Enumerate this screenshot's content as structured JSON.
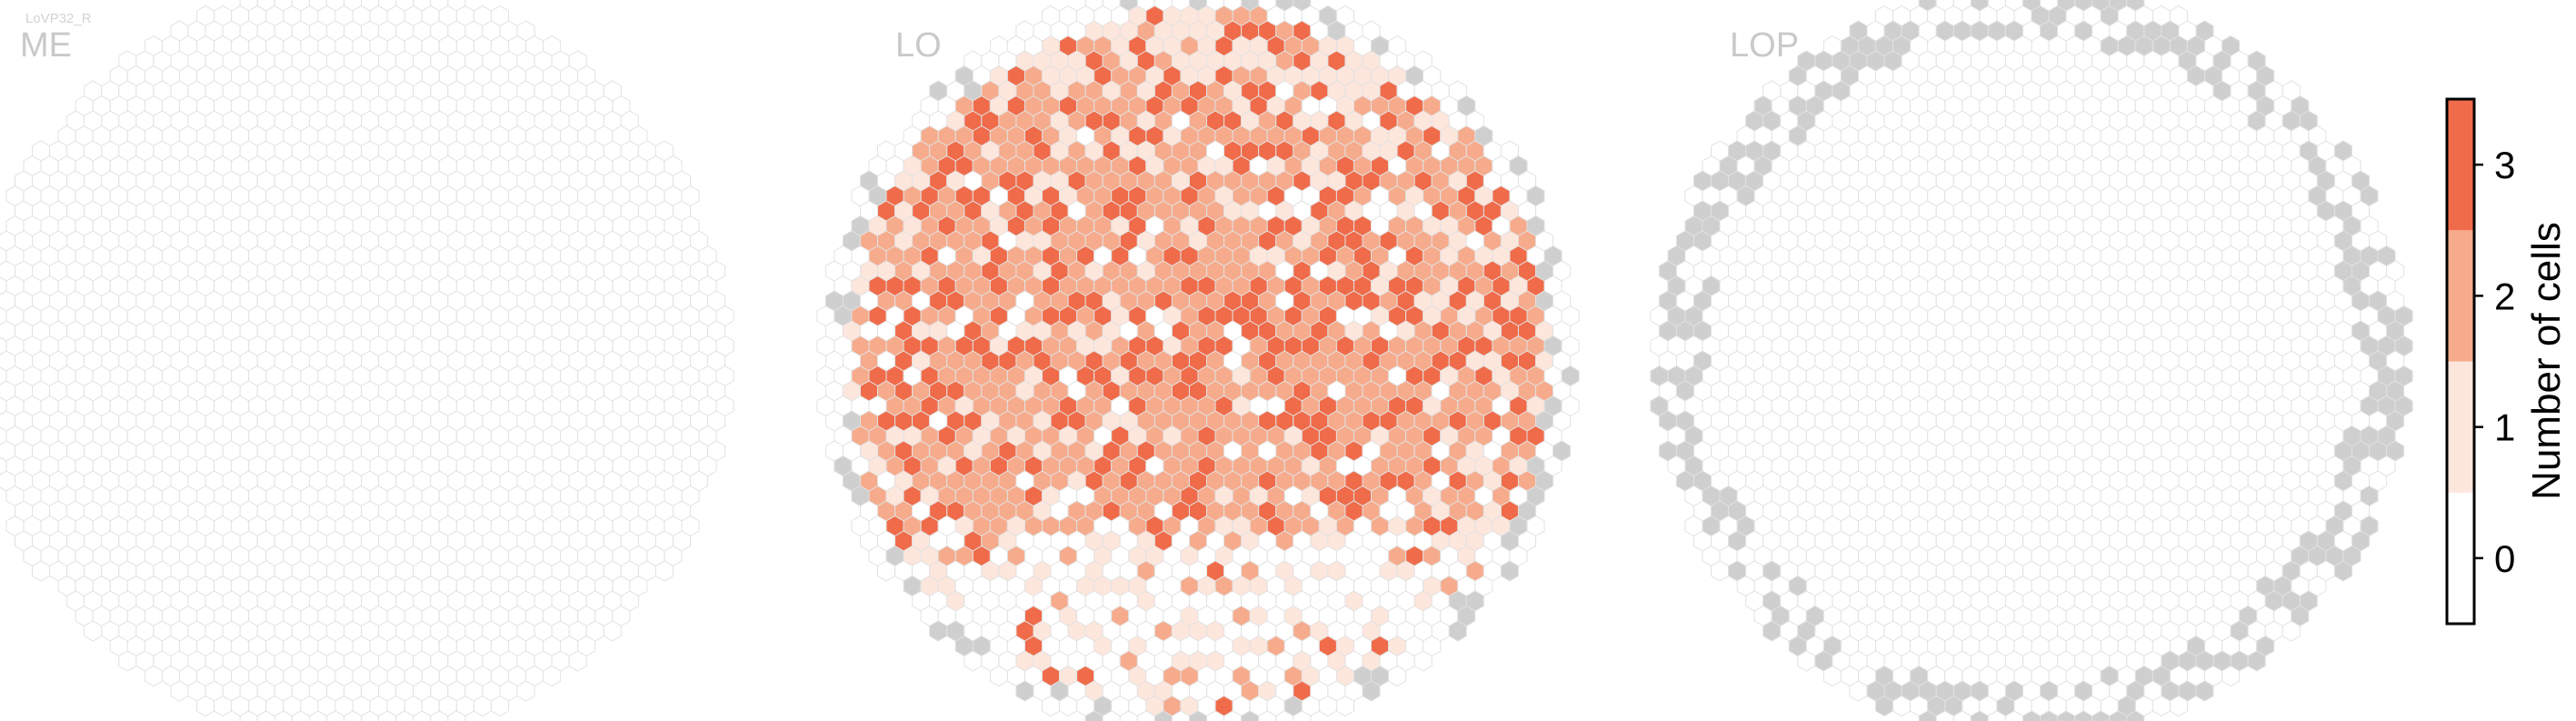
{
  "figure": {
    "label": "LoVP32_R"
  },
  "chart_data": {
    "type": "heatmap",
    "description_kind": "hexagonal column maps",
    "panels": [
      {
        "name": "ME",
        "title": "ME"
      },
      {
        "name": "LO",
        "title": "LO"
      },
      {
        "name": "LOP",
        "title": "LOP"
      }
    ],
    "colorbar": {
      "label": "Number of cells",
      "ticks": [
        0,
        1,
        2,
        3
      ],
      "range": [
        -0.5,
        3.5
      ]
    },
    "colors": {
      "0": "#ffffff",
      "1": "#fde6dc",
      "2": "#f6ab8c",
      "3": "#f06b4a",
      "outside": "#cfcfcf",
      "stroke": "#e2e2e2",
      "text": "#c9c9c9",
      "figure_label": "#d3d3d3",
      "axis": "#000000"
    },
    "legend_placement": "right"
  }
}
